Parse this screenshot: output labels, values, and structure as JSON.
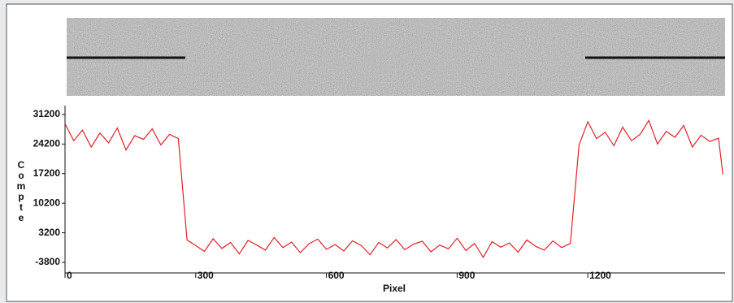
{
  "chart_data": {
    "type": "line",
    "x_label": "Pixel",
    "y_label": "Compte",
    "xlim": [
      0,
      1515
    ],
    "ylim": [
      -6300,
      33300
    ],
    "xticks": [
      0,
      300,
      600,
      900,
      1200
    ],
    "yticks": [
      -3800,
      3200,
      10200,
      17200,
      24200,
      31200
    ],
    "x": [
      0,
      20,
      40,
      60,
      80,
      100,
      120,
      140,
      160,
      180,
      200,
      220,
      240,
      260,
      280,
      300,
      320,
      340,
      360,
      380,
      400,
      420,
      440,
      460,
      480,
      500,
      520,
      540,
      560,
      580,
      600,
      620,
      640,
      660,
      680,
      700,
      720,
      740,
      760,
      780,
      800,
      820,
      840,
      860,
      880,
      900,
      920,
      940,
      960,
      980,
      1000,
      1020,
      1040,
      1060,
      1080,
      1100,
      1120,
      1140,
      1160,
      1180,
      1200,
      1220,
      1240,
      1260,
      1280,
      1300,
      1320,
      1340,
      1360,
      1380,
      1400,
      1420,
      1440,
      1460,
      1480,
      1500,
      1510
    ],
    "series": [
      {
        "name": "Compte",
        "color": "#e0202a",
        "values": [
          29000,
          25000,
          27500,
          23500,
          26800,
          24500,
          28000,
          22800,
          26200,
          25300,
          27800,
          24000,
          26500,
          25500,
          1500,
          200,
          -1200,
          1800,
          -500,
          900,
          -1800,
          1400,
          300,
          -900,
          2100,
          -300,
          1000,
          -1500,
          600,
          1700,
          -700,
          400,
          -1100,
          1300,
          200,
          -2000,
          900,
          -400,
          1600,
          -800,
          500,
          1200,
          -1300,
          300,
          -600,
          1900,
          -1000,
          700,
          -2600,
          1100,
          -200,
          800,
          -1400,
          1500,
          0,
          -900,
          1300,
          -300,
          700,
          24000,
          29500,
          25500,
          27000,
          23800,
          28200,
          25000,
          26500,
          29800,
          24200,
          27200,
          25800,
          28600,
          23500,
          26300,
          24800,
          25600,
          17000
        ]
      }
    ],
    "grid": false
  }
}
